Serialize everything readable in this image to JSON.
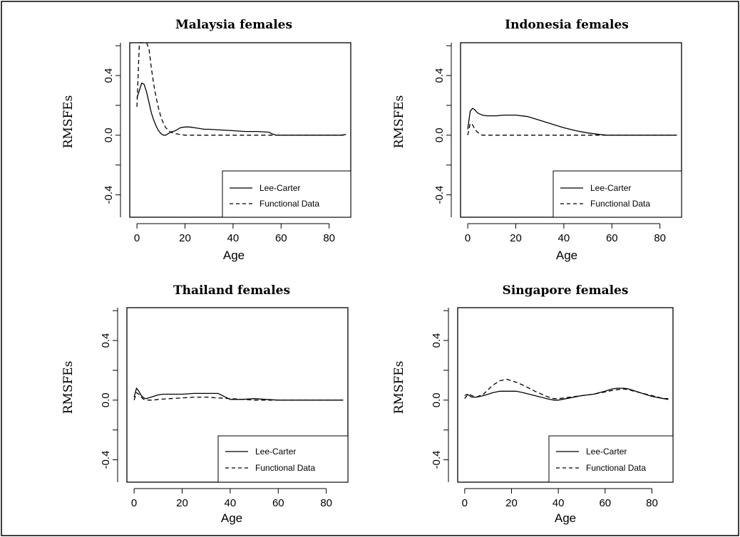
{
  "chart_data": [
    {
      "type": "line",
      "title": "Malaysia females",
      "xlabel": "Age",
      "ylabel": "RMSFEs",
      "xlim": [
        -3,
        89
      ],
      "ylim": [
        -0.55,
        0.62
      ],
      "xticks": [
        "0",
        "20",
        "40",
        "60",
        "80"
      ],
      "yticks": [
        "-0.4",
        "0.0",
        "0.4"
      ],
      "legend_position": "bottom-right",
      "series": [
        {
          "name": "Lee-Carter",
          "style": "solid",
          "x": [
            0,
            1,
            2,
            3,
            4,
            5,
            6,
            7,
            8,
            9,
            10,
            11,
            12,
            13,
            14,
            16,
            18,
            20,
            22,
            24,
            26,
            28,
            30,
            35,
            40,
            45,
            50,
            55,
            56,
            58,
            60,
            70,
            80,
            85,
            87
          ],
          "y": [
            0.25,
            0.3,
            0.35,
            0.34,
            0.29,
            0.22,
            0.15,
            0.1,
            0.06,
            0.03,
            0.01,
            0.0,
            0.0,
            0.01,
            0.02,
            0.03,
            0.05,
            0.055,
            0.055,
            0.05,
            0.045,
            0.04,
            0.04,
            0.035,
            0.03,
            0.025,
            0.025,
            0.02,
            0.01,
            0.0,
            0.0,
            0.0,
            0.0,
            0.0,
            0.005
          ]
        },
        {
          "name": "Functional Data",
          "style": "dashed",
          "x": [
            0,
            1,
            2,
            3,
            4,
            5,
            6,
            7,
            8,
            9,
            10,
            11,
            12,
            14,
            16,
            18,
            20,
            30,
            40,
            50,
            55,
            58,
            60,
            70,
            80,
            86
          ],
          "y": [
            0.19,
            0.62,
            0.62,
            0.62,
            0.62,
            0.58,
            0.45,
            0.34,
            0.25,
            0.18,
            0.12,
            0.08,
            0.05,
            0.02,
            0.01,
            0.005,
            0.0,
            0.0,
            0.0,
            0.0,
            0.0,
            0.0,
            0.0,
            0.0,
            0.0,
            0.0
          ]
        }
      ]
    },
    {
      "type": "line",
      "title": "Indonesia females",
      "xlabel": "Age",
      "ylabel": "RMSFEs",
      "xlim": [
        -3,
        89
      ],
      "ylim": [
        -0.55,
        0.62
      ],
      "xticks": [
        "0",
        "20",
        "40",
        "60",
        "80"
      ],
      "yticks": [
        "-0.4",
        "0.0",
        "0.4"
      ],
      "legend_position": "bottom-right",
      "series": [
        {
          "name": "Lee-Carter",
          "style": "solid",
          "x": [
            0,
            1,
            2,
            3,
            4,
            6,
            8,
            10,
            12,
            15,
            20,
            25,
            30,
            35,
            40,
            45,
            50,
            55,
            58,
            60,
            70,
            80,
            87
          ],
          "y": [
            0.04,
            0.16,
            0.18,
            0.17,
            0.15,
            0.135,
            0.13,
            0.13,
            0.13,
            0.135,
            0.135,
            0.125,
            0.1,
            0.075,
            0.05,
            0.03,
            0.015,
            0.005,
            0.0,
            0.0,
            0.0,
            0.0,
            0.0
          ]
        },
        {
          "name": "Functional Data",
          "style": "dashed",
          "x": [
            0,
            1,
            2,
            3,
            4,
            5,
            6,
            8,
            10,
            20,
            30,
            40,
            50,
            60,
            87
          ],
          "y": [
            0.0,
            0.08,
            0.07,
            0.04,
            0.02,
            0.01,
            0.0,
            0.0,
            0.0,
            0.0,
            0.0,
            0.0,
            0.0,
            0.0,
            0.0
          ]
        }
      ]
    },
    {
      "type": "line",
      "title": "Thailand females",
      "xlabel": "Age",
      "ylabel": "RMSFEs",
      "xlim": [
        -3,
        89
      ],
      "ylim": [
        -0.55,
        0.62
      ],
      "xticks": [
        "0",
        "20",
        "40",
        "60",
        "80"
      ],
      "yticks": [
        "-0.4",
        "0.0",
        "0.4"
      ],
      "legend_position": "bottom-right",
      "series": [
        {
          "name": "Lee-Carter",
          "style": "solid",
          "x": [
            0,
            1,
            2,
            3,
            4,
            5,
            6,
            8,
            10,
            12,
            15,
            20,
            25,
            30,
            35,
            38,
            40,
            45,
            50,
            55,
            60,
            70,
            80,
            87
          ],
          "y": [
            0.02,
            0.08,
            0.06,
            0.03,
            0.015,
            0.01,
            0.015,
            0.025,
            0.035,
            0.04,
            0.04,
            0.04,
            0.045,
            0.045,
            0.045,
            0.02,
            0.005,
            0.005,
            0.01,
            0.005,
            0.0,
            0.0,
            0.0,
            0.0
          ]
        },
        {
          "name": "Functional Data",
          "style": "dashed",
          "x": [
            0,
            1,
            2,
            3,
            4,
            6,
            8,
            10,
            15,
            20,
            25,
            30,
            35,
            40,
            50,
            60,
            70,
            80,
            87
          ],
          "y": [
            0.0,
            0.05,
            0.04,
            0.02,
            0.005,
            0.0,
            0.0,
            0.005,
            0.01,
            0.015,
            0.02,
            0.02,
            0.015,
            0.01,
            0.0,
            0.0,
            0.0,
            0.0,
            0.0
          ]
        }
      ]
    },
    {
      "type": "line",
      "title": "Singapore females",
      "xlabel": "Age",
      "ylabel": "RMSFEs",
      "xlim": [
        -3,
        89
      ],
      "ylim": [
        -0.55,
        0.62
      ],
      "xticks": [
        "0",
        "20",
        "40",
        "60",
        "80"
      ],
      "yticks": [
        "-0.4",
        "0.0",
        "0.4"
      ],
      "legend_position": "bottom-right",
      "series": [
        {
          "name": "Lee-Carter",
          "style": "solid",
          "x": [
            0,
            1,
            2,
            3,
            5,
            8,
            10,
            12,
            15,
            18,
            20,
            22,
            25,
            30,
            35,
            38,
            40,
            45,
            50,
            55,
            60,
            63,
            65,
            68,
            70,
            75,
            80,
            85,
            87
          ],
          "y": [
            0.03,
            0.04,
            0.03,
            0.02,
            0.02,
            0.03,
            0.04,
            0.05,
            0.06,
            0.06,
            0.06,
            0.06,
            0.05,
            0.03,
            0.01,
            0.0,
            0.0,
            0.015,
            0.03,
            0.04,
            0.06,
            0.075,
            0.08,
            0.08,
            0.075,
            0.05,
            0.025,
            0.01,
            0.005
          ]
        },
        {
          "name": "Functional Data",
          "style": "dashed",
          "x": [
            0,
            1,
            2,
            3,
            5,
            8,
            10,
            12,
            15,
            18,
            20,
            22,
            25,
            30,
            35,
            38,
            40,
            45,
            50,
            55,
            60,
            63,
            65,
            68,
            70,
            75,
            80,
            85,
            87
          ],
          "y": [
            0.01,
            0.03,
            0.04,
            0.03,
            0.02,
            0.04,
            0.07,
            0.1,
            0.13,
            0.14,
            0.13,
            0.12,
            0.1,
            0.06,
            0.025,
            0.01,
            0.01,
            0.02,
            0.03,
            0.04,
            0.055,
            0.065,
            0.07,
            0.075,
            0.07,
            0.05,
            0.03,
            0.01,
            0.01
          ]
        }
      ]
    }
  ]
}
